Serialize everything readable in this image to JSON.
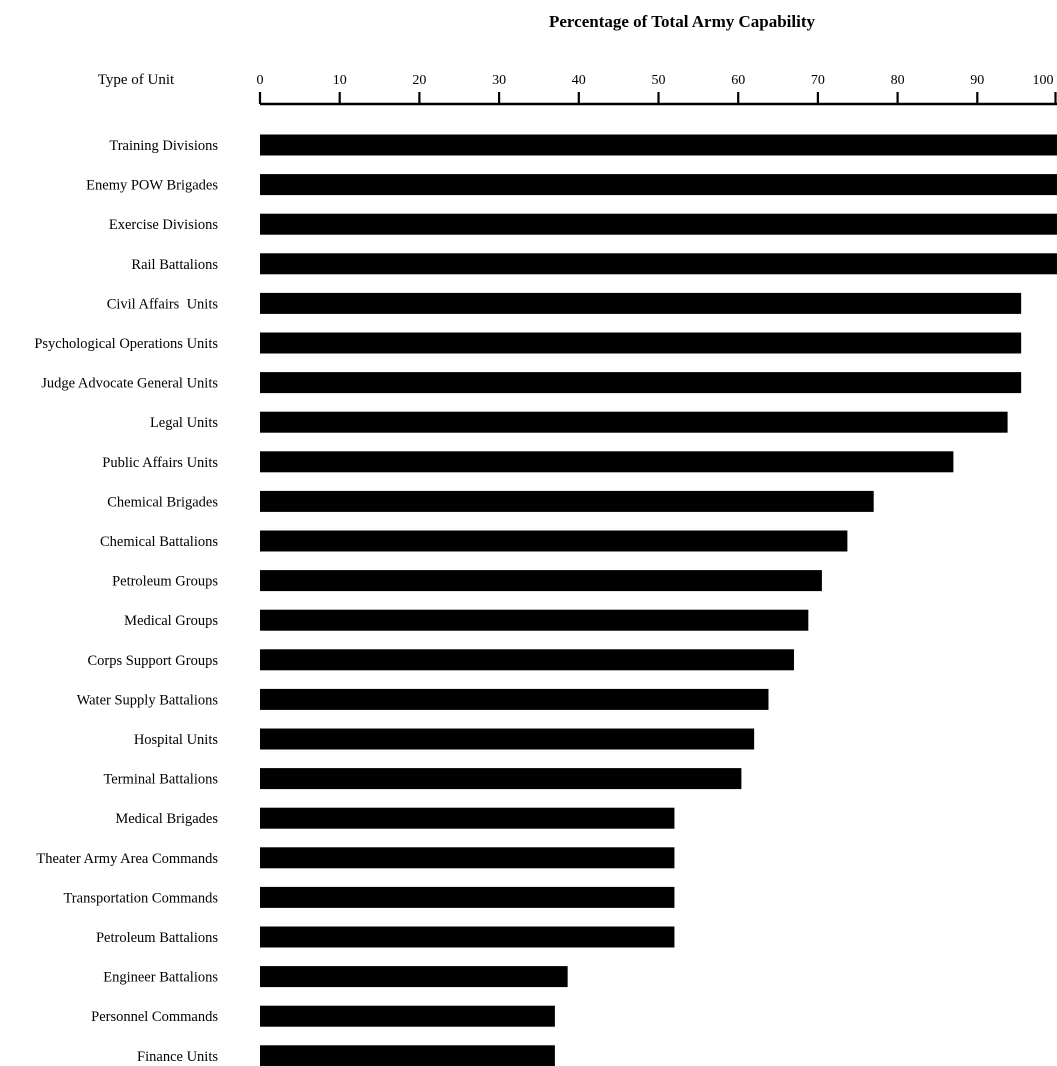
{
  "chart_data": {
    "type": "bar",
    "orientation": "horizontal",
    "title": "Percentage of Total  Army Capability",
    "category_header": "Type of Unit",
    "xlim": [
      0,
      100
    ],
    "x_ticks": [
      0,
      10,
      20,
      30,
      40,
      50,
      60,
      70,
      80,
      90,
      100
    ],
    "grid": false,
    "categories": [
      "Training Divisions",
      "Enemy POW Brigades",
      "Exercise Divisions",
      "Rail Battalions",
      "Civil Affairs  Units",
      "Psychological Operations Units",
      "Judge Advocate General Units",
      "Legal Units",
      "Public Affairs Units",
      "Chemical Brigades",
      "Chemical Battalions",
      "Petroleum Groups",
      "Medical Groups",
      "Corps Support Groups",
      "Water Supply Battalions",
      "Hospital Units",
      "Terminal Battalions",
      "Medical Brigades",
      "Theater Army Area Commands",
      "Transportation Commands",
      "Petroleum Battalions",
      "Engineer Battalions",
      "Personnel Commands",
      "Finance Units"
    ],
    "values": [
      100,
      100,
      100,
      100,
      95.5,
      95.5,
      95.5,
      93.8,
      87,
      77,
      73.7,
      70.5,
      68.8,
      67,
      63.8,
      62,
      60.4,
      52,
      52,
      52,
      52,
      38.6,
      37,
      37
    ],
    "bar_color": "#000000"
  }
}
